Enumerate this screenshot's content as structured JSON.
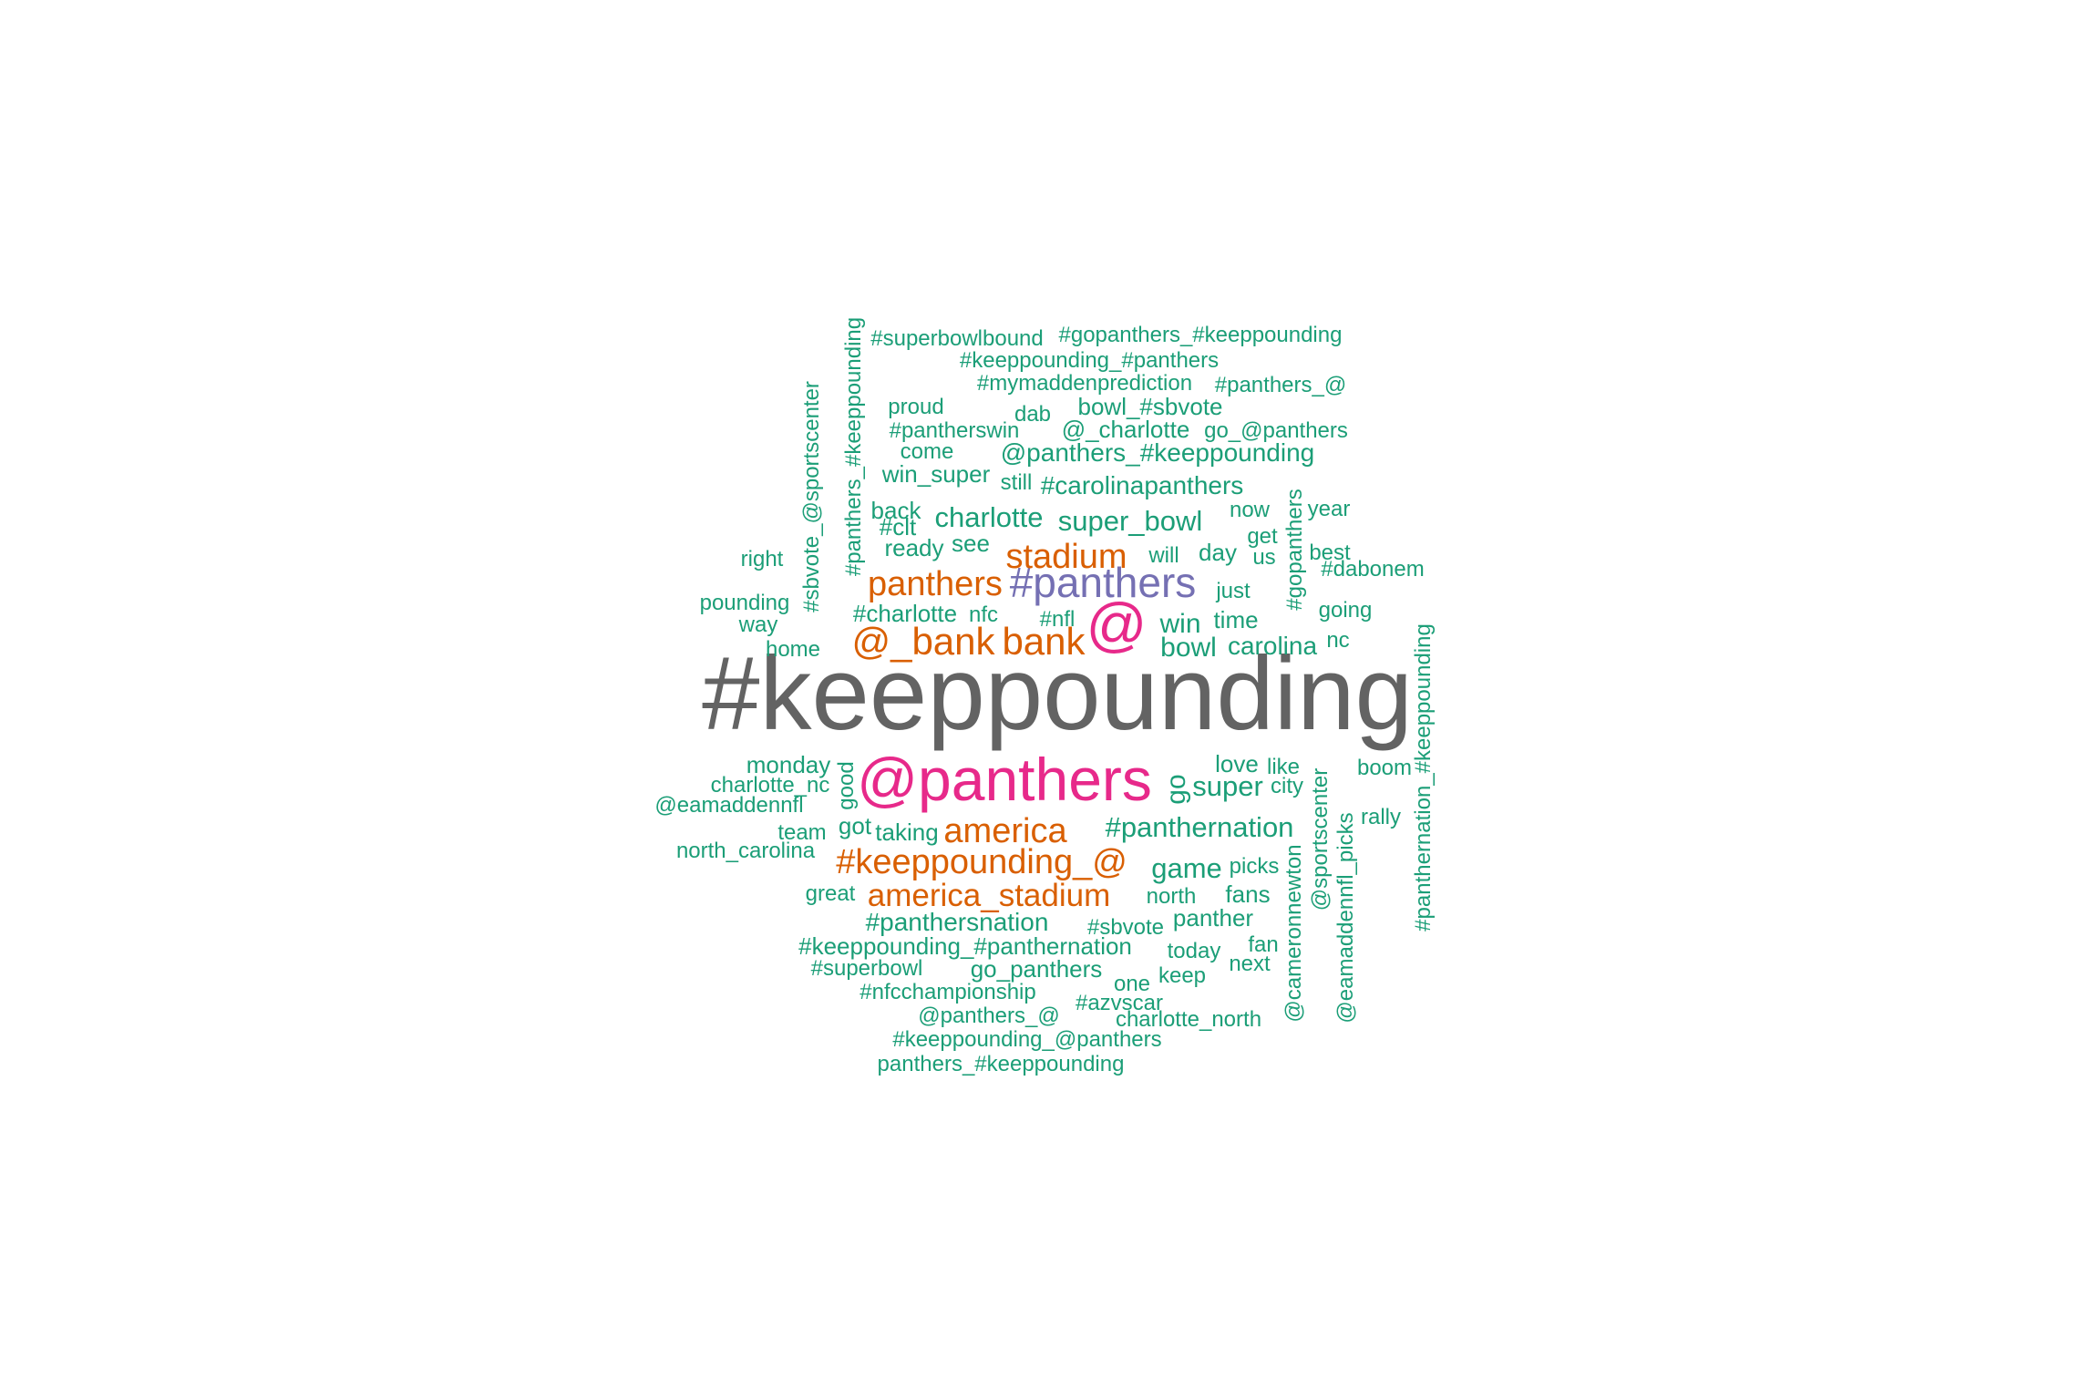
{
  "colors": {
    "gray": "#636363",
    "pink": "#e7298a",
    "purple": "#7570b3",
    "orange": "#d95f02",
    "green": "#1b9e77"
  },
  "words": [
    {
      "id": "w0",
      "text": "#keeppounding",
      "color": "gray"
    },
    {
      "id": "w1",
      "text": "@panthers",
      "color": "pink"
    },
    {
      "id": "w2",
      "text": "@",
      "color": "pink"
    },
    {
      "id": "w3",
      "text": "#panthers",
      "color": "purple"
    },
    {
      "id": "w4",
      "text": "stadium",
      "color": "orange"
    },
    {
      "id": "w5",
      "text": "panthers",
      "color": "orange"
    },
    {
      "id": "w6",
      "text": "@_bank",
      "color": "orange"
    },
    {
      "id": "w7",
      "text": "bank",
      "color": "orange"
    },
    {
      "id": "w8",
      "text": "america",
      "color": "orange"
    },
    {
      "id": "w9",
      "text": "#keeppounding_@",
      "color": "orange"
    },
    {
      "id": "w10",
      "text": "america_stadium",
      "color": "orange"
    },
    {
      "id": "w11",
      "text": "#superbowlbound",
      "color": "green"
    },
    {
      "id": "w12",
      "text": "#gopanthers_#keeppounding",
      "color": "green"
    },
    {
      "id": "w13",
      "text": "#keeppounding_#panthers",
      "color": "green"
    },
    {
      "id": "w14",
      "text": "#mymaddenprediction",
      "color": "green"
    },
    {
      "id": "w15",
      "text": "#panthers_@",
      "color": "green"
    },
    {
      "id": "w16",
      "text": "proud",
      "color": "green"
    },
    {
      "id": "w17",
      "text": "dab",
      "color": "green"
    },
    {
      "id": "w18",
      "text": "bowl_#sbvote",
      "color": "green"
    },
    {
      "id": "w19",
      "text": "#pantherswin",
      "color": "green"
    },
    {
      "id": "w20",
      "text": "@_charlotte",
      "color": "green"
    },
    {
      "id": "w21",
      "text": "go_@panthers",
      "color": "green"
    },
    {
      "id": "w22",
      "text": "come",
      "color": "green"
    },
    {
      "id": "w23",
      "text": "@panthers_#keeppounding",
      "color": "green"
    },
    {
      "id": "w24",
      "text": "win_super",
      "color": "green"
    },
    {
      "id": "w25",
      "text": "still",
      "color": "green"
    },
    {
      "id": "w26",
      "text": "#carolinapanthers",
      "color": "green"
    },
    {
      "id": "w27",
      "text": "back",
      "color": "green"
    },
    {
      "id": "w28",
      "text": "charlotte",
      "color": "green"
    },
    {
      "id": "w29",
      "text": "super_bowl",
      "color": "green"
    },
    {
      "id": "w30",
      "text": "now",
      "color": "green"
    },
    {
      "id": "w31",
      "text": "year",
      "color": "green"
    },
    {
      "id": "w32",
      "text": "#clt",
      "color": "green"
    },
    {
      "id": "w33",
      "text": "get",
      "color": "green"
    },
    {
      "id": "w34",
      "text": "ready",
      "color": "green"
    },
    {
      "id": "w35",
      "text": "see",
      "color": "green"
    },
    {
      "id": "w36",
      "text": "will",
      "color": "green"
    },
    {
      "id": "w37",
      "text": "day",
      "color": "green"
    },
    {
      "id": "w38",
      "text": "us",
      "color": "green"
    },
    {
      "id": "w39",
      "text": "best",
      "color": "green"
    },
    {
      "id": "w40",
      "text": "right",
      "color": "green"
    },
    {
      "id": "w41",
      "text": "#dabonem",
      "color": "green"
    },
    {
      "id": "w42",
      "text": "just",
      "color": "green"
    },
    {
      "id": "w43",
      "text": "pounding",
      "color": "green"
    },
    {
      "id": "w44",
      "text": "going",
      "color": "green"
    },
    {
      "id": "w45",
      "text": "way",
      "color": "green"
    },
    {
      "id": "w46",
      "text": "#charlotte",
      "color": "green"
    },
    {
      "id": "w47",
      "text": "nfc",
      "color": "green"
    },
    {
      "id": "w48",
      "text": "#nfl",
      "color": "green"
    },
    {
      "id": "w49",
      "text": "win",
      "color": "green"
    },
    {
      "id": "w50",
      "text": "time",
      "color": "green"
    },
    {
      "id": "w51",
      "text": "nc",
      "color": "green"
    },
    {
      "id": "w52",
      "text": "home",
      "color": "green"
    },
    {
      "id": "w53",
      "text": "bowl",
      "color": "green"
    },
    {
      "id": "w54",
      "text": "carolina",
      "color": "green"
    },
    {
      "id": "w55",
      "text": "monday",
      "color": "green"
    },
    {
      "id": "w56",
      "text": "love",
      "color": "green"
    },
    {
      "id": "w57",
      "text": "like",
      "color": "green"
    },
    {
      "id": "w58",
      "text": "boom",
      "color": "green"
    },
    {
      "id": "w59",
      "text": "charlotte_nc",
      "color": "green"
    },
    {
      "id": "w60",
      "text": "super",
      "color": "green"
    },
    {
      "id": "w61",
      "text": "city",
      "color": "green"
    },
    {
      "id": "w62",
      "text": "@eamaddennfl",
      "color": "green"
    },
    {
      "id": "w63",
      "text": "rally",
      "color": "green"
    },
    {
      "id": "w64",
      "text": "team",
      "color": "green"
    },
    {
      "id": "w65",
      "text": "got",
      "color": "green"
    },
    {
      "id": "w66",
      "text": "taking",
      "color": "green"
    },
    {
      "id": "w67",
      "text": "#panthernation",
      "color": "green"
    },
    {
      "id": "w68",
      "text": "north_carolina",
      "color": "green"
    },
    {
      "id": "w69",
      "text": "game",
      "color": "green"
    },
    {
      "id": "w70",
      "text": "picks",
      "color": "green"
    },
    {
      "id": "w71",
      "text": "great",
      "color": "green"
    },
    {
      "id": "w72",
      "text": "north",
      "color": "green"
    },
    {
      "id": "w73",
      "text": "fans",
      "color": "green"
    },
    {
      "id": "w74",
      "text": "#panthersnation",
      "color": "green"
    },
    {
      "id": "w75",
      "text": "#sbvote",
      "color": "green"
    },
    {
      "id": "w76",
      "text": "panther",
      "color": "green"
    },
    {
      "id": "w77",
      "text": "#keeppounding_#panthernation",
      "color": "green"
    },
    {
      "id": "w78",
      "text": "today",
      "color": "green"
    },
    {
      "id": "w79",
      "text": "fan",
      "color": "green"
    },
    {
      "id": "w80",
      "text": "#superbowl",
      "color": "green"
    },
    {
      "id": "w81",
      "text": "go_panthers",
      "color": "green"
    },
    {
      "id": "w82",
      "text": "next",
      "color": "green"
    },
    {
      "id": "w83",
      "text": "keep",
      "color": "green"
    },
    {
      "id": "w84",
      "text": "one",
      "color": "green"
    },
    {
      "id": "w85",
      "text": "#nfcchampionship",
      "color": "green"
    },
    {
      "id": "w86",
      "text": "#azvscar",
      "color": "green"
    },
    {
      "id": "w87",
      "text": "@panthers_@",
      "color": "green"
    },
    {
      "id": "w88",
      "text": "charlotte_north",
      "color": "green"
    },
    {
      "id": "w89",
      "text": "#keeppounding_@panthers",
      "color": "green"
    },
    {
      "id": "w90",
      "text": "panthers_#keeppounding",
      "color": "green"
    },
    {
      "id": "w91",
      "text": "#panthers_#keeppounding",
      "color": "green"
    },
    {
      "id": "w92",
      "text": "#sbvote_@sportscenter",
      "color": "green"
    },
    {
      "id": "w93",
      "text": "#gopanthers",
      "color": "green"
    },
    {
      "id": "w94",
      "text": "good",
      "color": "green"
    },
    {
      "id": "w95",
      "text": "go",
      "color": "green"
    },
    {
      "id": "w96",
      "text": "@cameronnewton",
      "color": "green"
    },
    {
      "id": "w97",
      "text": "@sportscenter",
      "color": "green"
    },
    {
      "id": "w98",
      "text": "@eamaddennfl_picks",
      "color": "green"
    },
    {
      "id": "w99",
      "text": "#panthernation_#keeppounding",
      "color": "green"
    }
  ]
}
